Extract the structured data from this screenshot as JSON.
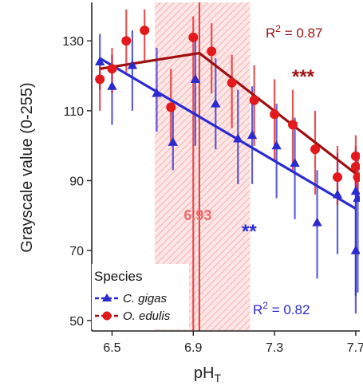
{
  "chart_data": {
    "type": "scatter",
    "xlabel": "pH",
    "xlabel_sub": "T",
    "ylabel": "Grayscale value (0-255)",
    "xlim": [
      6.4,
      7.72
    ],
    "ylim": [
      47,
      141
    ],
    "x_ticks": [
      "6.5",
      "6.9",
      "7.3",
      "7.7"
    ],
    "y_ticks": [
      "50",
      "70",
      "90",
      "110",
      "130"
    ],
    "threshold_band": [
      6.71,
      7.18
    ],
    "breakpoint": {
      "x": 6.93,
      "label": "6.93"
    },
    "legend": {
      "title": "Species",
      "position": "bottom-left"
    },
    "series": [
      {
        "name": "C. gigas",
        "color": "#2a2ad0",
        "marker": "triangle",
        "points": [
          {
            "x": 6.44,
            "y": 124,
            "lo": 116,
            "hi": 132
          },
          {
            "x": 6.5,
            "y": 117,
            "lo": 106,
            "hi": 126
          },
          {
            "x": 6.6,
            "y": 123,
            "lo": 110,
            "hi": 133
          },
          {
            "x": 6.72,
            "y": 115,
            "lo": 104,
            "hi": 128
          },
          {
            "x": 6.8,
            "y": 101,
            "lo": 93,
            "hi": 113
          },
          {
            "x": 6.91,
            "y": 119,
            "lo": 100,
            "hi": 132
          },
          {
            "x": 7.01,
            "y": 112,
            "lo": 99,
            "hi": 125
          },
          {
            "x": 7.12,
            "y": 102,
            "lo": 89,
            "hi": 116
          },
          {
            "x": 7.19,
            "y": 103,
            "lo": 89,
            "hi": 117
          },
          {
            "x": 7.31,
            "y": 100,
            "lo": 85,
            "hi": 112
          },
          {
            "x": 7.4,
            "y": 95,
            "lo": 79,
            "hi": 108
          },
          {
            "x": 7.51,
            "y": 78,
            "lo": 62,
            "hi": 93
          },
          {
            "x": 7.61,
            "y": 86,
            "lo": 69,
            "hi": 98
          },
          {
            "x": 7.7,
            "y": 87,
            "lo": 57,
            "hi": 99
          },
          {
            "x": 7.71,
            "y": 85,
            "lo": 58,
            "hi": 97
          },
          {
            "x": 7.7,
            "y": 70,
            "lo": 52,
            "hi": 90
          }
        ],
        "fit": [
          {
            "x": 6.44,
            "y": 125
          },
          {
            "x": 7.7,
            "y": 82
          }
        ],
        "r2_label": "R",
        "r2_exp": "2",
        "r2_value": " = 0.82",
        "significance": "**"
      },
      {
        "name": "O. edulis",
        "color": "#e31a1c",
        "fit_color": "#a01010",
        "marker": "circle",
        "points": [
          {
            "x": 6.44,
            "y": 119,
            "lo": 110,
            "hi": 125
          },
          {
            "x": 6.5,
            "y": 122,
            "lo": 115,
            "hi": 128
          },
          {
            "x": 6.57,
            "y": 130,
            "lo": 121,
            "hi": 139
          },
          {
            "x": 6.66,
            "y": 133,
            "lo": 124,
            "hi": 139
          },
          {
            "x": 6.79,
            "y": 111,
            "lo": 101,
            "hi": 122
          },
          {
            "x": 6.9,
            "y": 131,
            "lo": 47,
            "hi": 137
          },
          {
            "x": 6.99,
            "y": 127,
            "lo": 115,
            "hi": 135
          },
          {
            "x": 7.09,
            "y": 118,
            "lo": 105,
            "hi": 126
          },
          {
            "x": 7.2,
            "y": 113,
            "lo": 100,
            "hi": 123
          },
          {
            "x": 7.3,
            "y": 109,
            "lo": 96,
            "hi": 119
          },
          {
            "x": 7.39,
            "y": 106,
            "lo": 93,
            "hi": 116
          },
          {
            "x": 7.5,
            "y": 99,
            "lo": 86,
            "hi": 110
          },
          {
            "x": 7.61,
            "y": 91,
            "lo": 83,
            "hi": 100
          },
          {
            "x": 7.7,
            "y": 97,
            "lo": 89,
            "hi": 103
          },
          {
            "x": 7.7,
            "y": 94,
            "lo": 88,
            "hi": 100
          },
          {
            "x": 7.71,
            "y": 91,
            "lo": 87,
            "hi": 96
          }
        ],
        "fit": [
          {
            "x": 6.44,
            "y": 122
          },
          {
            "x": 6.93,
            "y": 126.5
          },
          {
            "x": 7.7,
            "y": 92
          }
        ],
        "r2_label": "R",
        "r2_exp": "2",
        "r2_value": " = 0.87",
        "significance": "***"
      }
    ]
  }
}
